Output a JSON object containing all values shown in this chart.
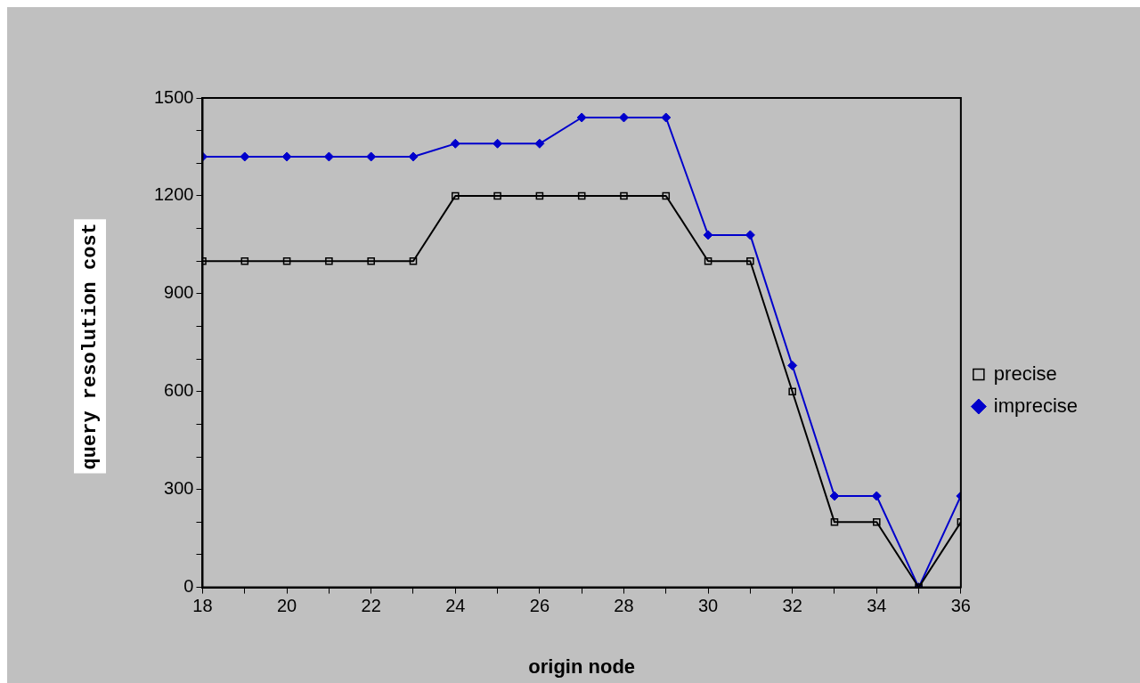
{
  "chart_data": {
    "type": "line",
    "xlabel": "origin node",
    "ylabel": "query resolution cost",
    "x": [
      18,
      19,
      20,
      21,
      22,
      23,
      24,
      25,
      26,
      27,
      28,
      29,
      30,
      31,
      32,
      33,
      34,
      35,
      36
    ],
    "series": [
      {
        "name": "precise",
        "color": "#000000",
        "marker": "square",
        "values": [
          1000,
          1000,
          1000,
          1000,
          1000,
          1000,
          1200,
          1200,
          1200,
          1200,
          1200,
          1200,
          1000,
          1000,
          600,
          200,
          200,
          0,
          200
        ]
      },
      {
        "name": "imprecise",
        "color": "#0000cc",
        "marker": "diamond",
        "values": [
          1320,
          1320,
          1320,
          1320,
          1320,
          1320,
          1360,
          1360,
          1360,
          1440,
          1440,
          1440,
          1080,
          1080,
          680,
          280,
          280,
          0,
          280
        ]
      }
    ],
    "xlim": [
      18,
      36
    ],
    "xticks": [
      18,
      {
        "value": 19,
        "label": null
      },
      20,
      {
        "value": 21,
        "label": null
      },
      22,
      {
        "value": 23,
        "label": null
      },
      24,
      {
        "value": 25,
        "label": null
      },
      26,
      {
        "value": 27,
        "label": null
      },
      28,
      {
        "value": 29,
        "label": null
      },
      30,
      {
        "value": 31,
        "label": null
      },
      32,
      {
        "value": 33,
        "label": null
      },
      34,
      {
        "value": 35,
        "label": null
      },
      36
    ],
    "ylim": [
      0,
      1500
    ],
    "yticks": [
      0,
      {
        "value": 100,
        "label": null
      },
      {
        "value": 200,
        "label": null
      },
      300,
      {
        "value": 400,
        "label": null
      },
      {
        "value": 500,
        "label": null
      },
      600,
      {
        "value": 700,
        "label": null
      },
      {
        "value": 800,
        "label": null
      },
      900,
      {
        "value": 1000,
        "label": null
      },
      {
        "value": 1100,
        "label": null
      },
      1200,
      {
        "value": 1300,
        "label": null
      },
      {
        "value": 1400,
        "label": null
      },
      1500
    ],
    "grid": false,
    "legend": "right",
    "line_style": "solid"
  }
}
